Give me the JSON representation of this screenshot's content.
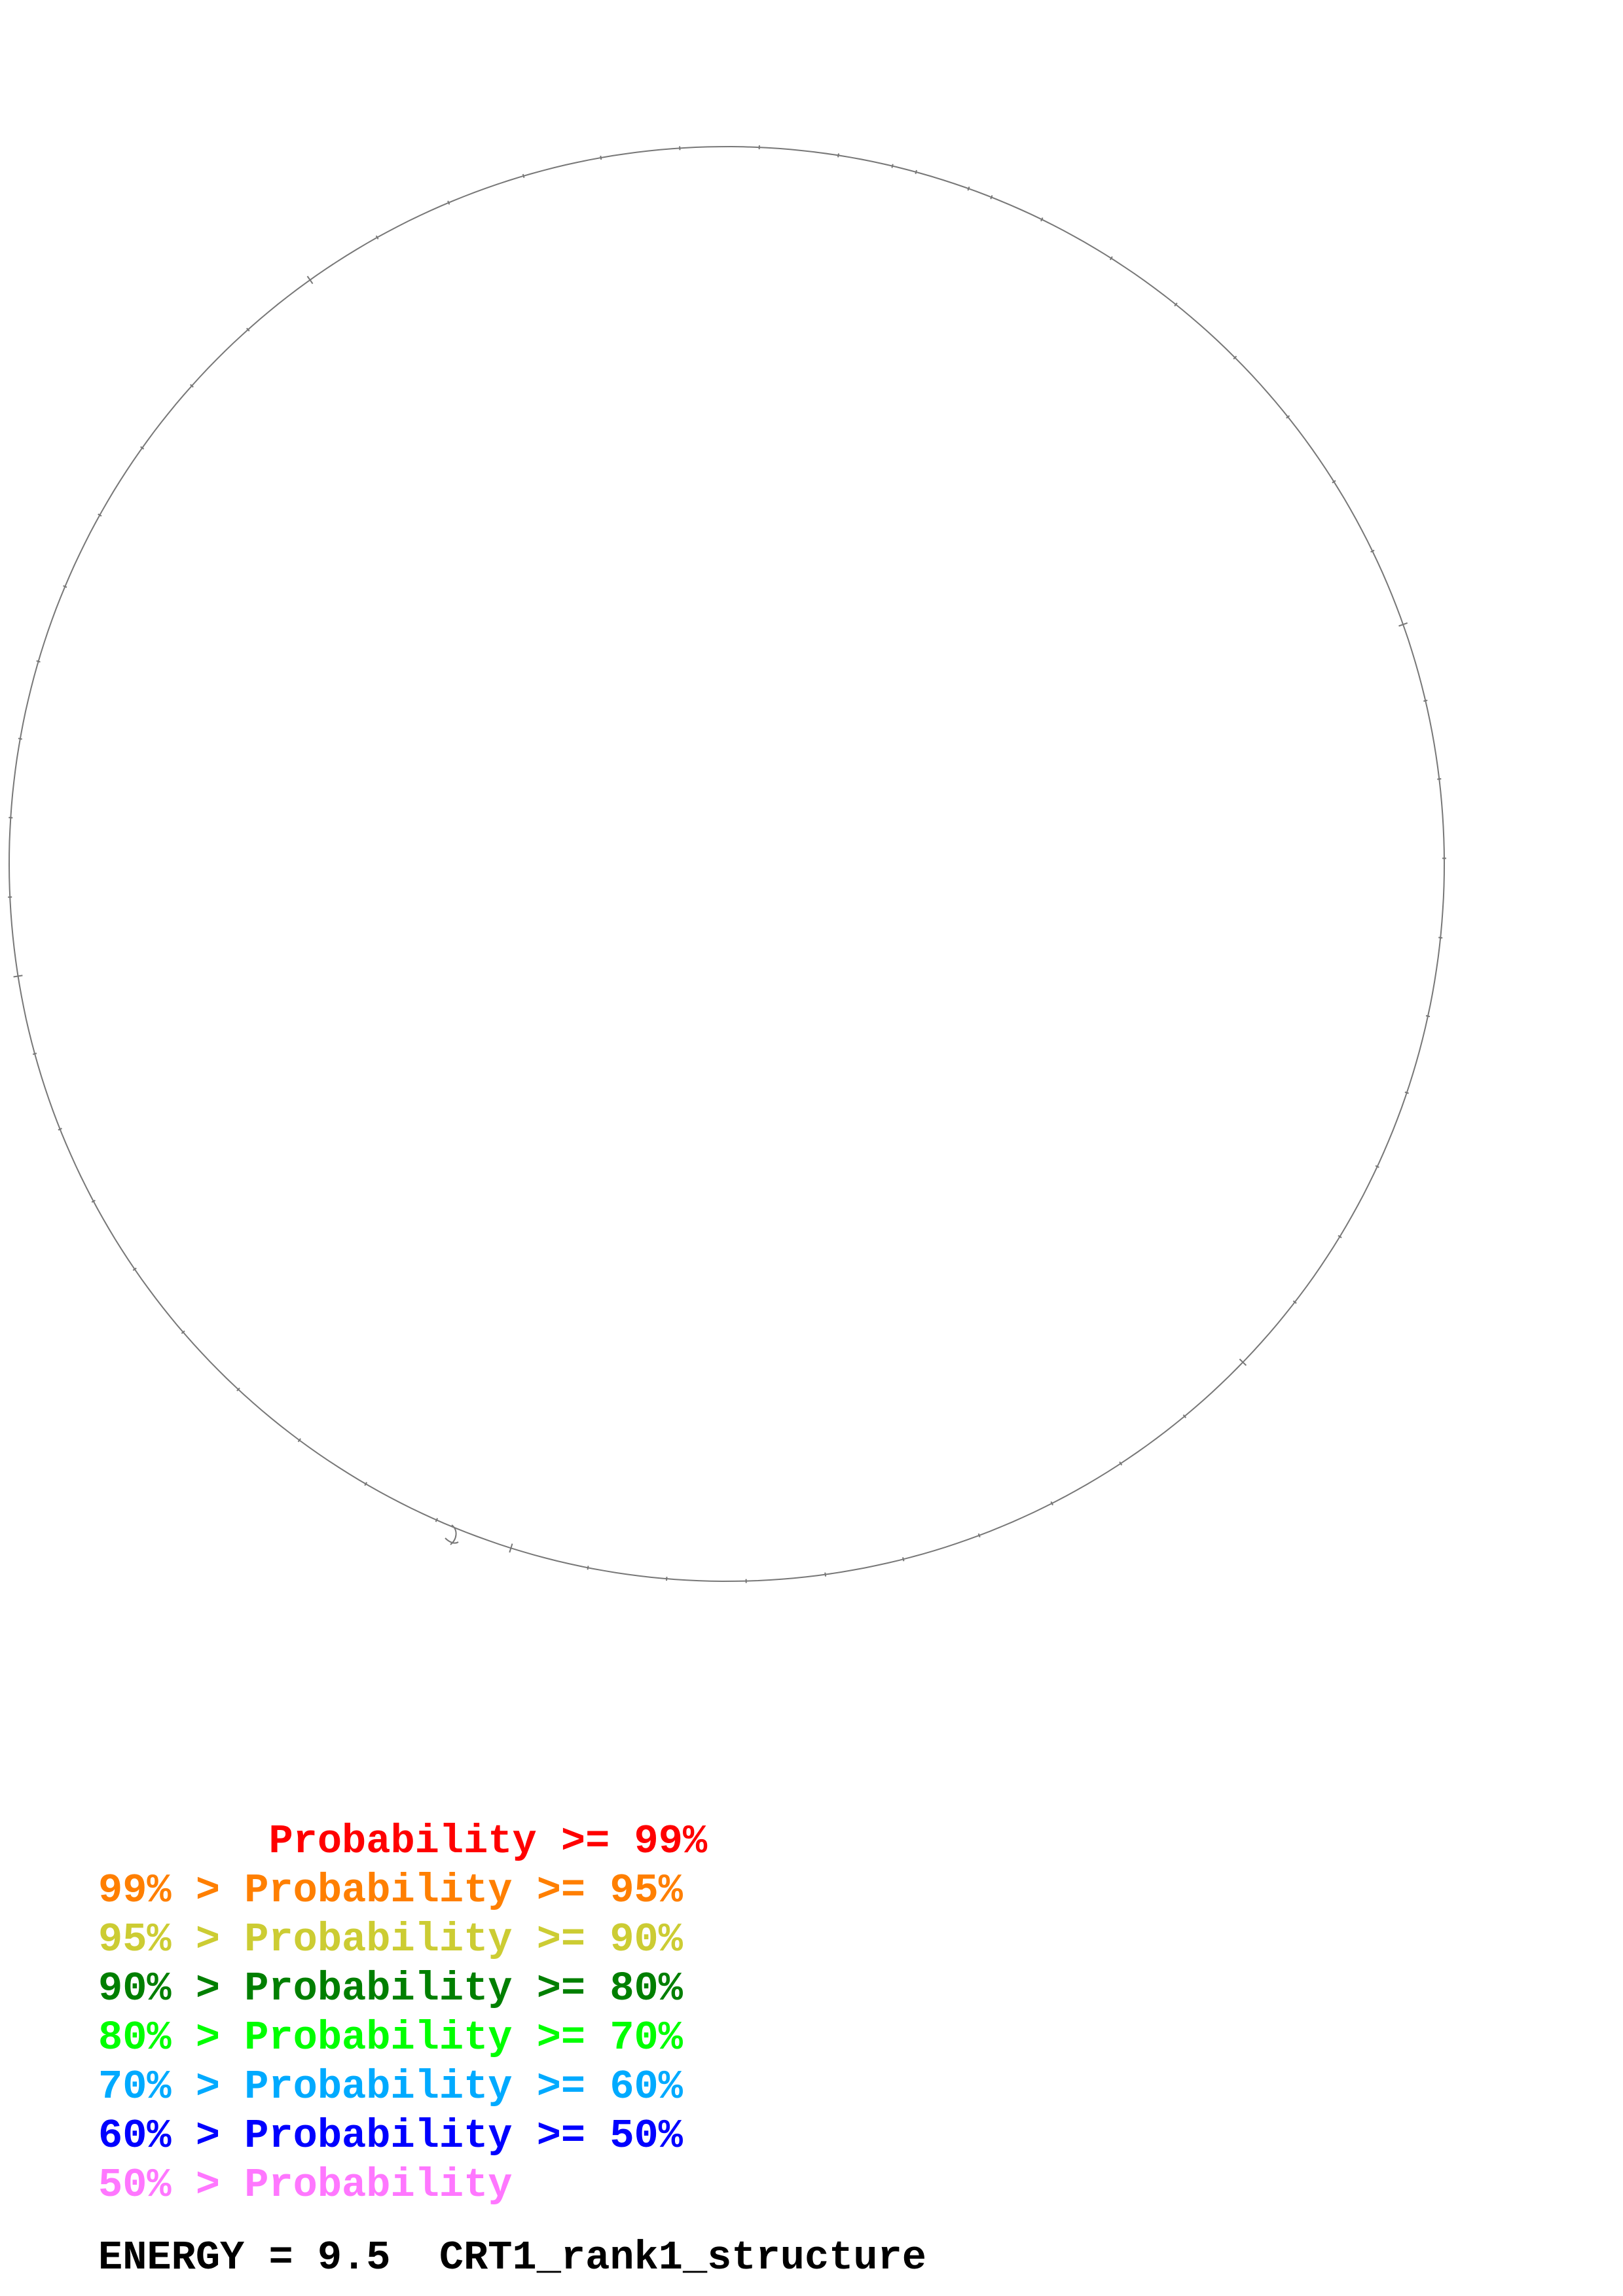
{
  "legend": [
    {
      "text": "       Probability >= 99%",
      "color": "#ff0000"
    },
    {
      "text": "99% > Probability >= 95%",
      "color": "#ff7f00"
    },
    {
      "text": "95% > Probability >= 90%",
      "color": "#cccc33"
    },
    {
      "text": "90% > Probability >= 80%",
      "color": "#007f00"
    },
    {
      "text": "80% > Probability >= 70%",
      "color": "#00ff00"
    },
    {
      "text": "70% > Probability >= 60%",
      "color": "#00aaff"
    },
    {
      "text": "60% > Probability >= 50%",
      "color": "#0000ff"
    },
    {
      "text": "50% > Probability",
      "color": "#ff77ff"
    }
  ],
  "energy": {
    "label": "ENERGY = 9.5",
    "structure_name": "CRT1_rank1_structure",
    "full": "ENERGY = 9.5  CRT1_rank1_structure"
  },
  "backbone_color": "#777777"
}
